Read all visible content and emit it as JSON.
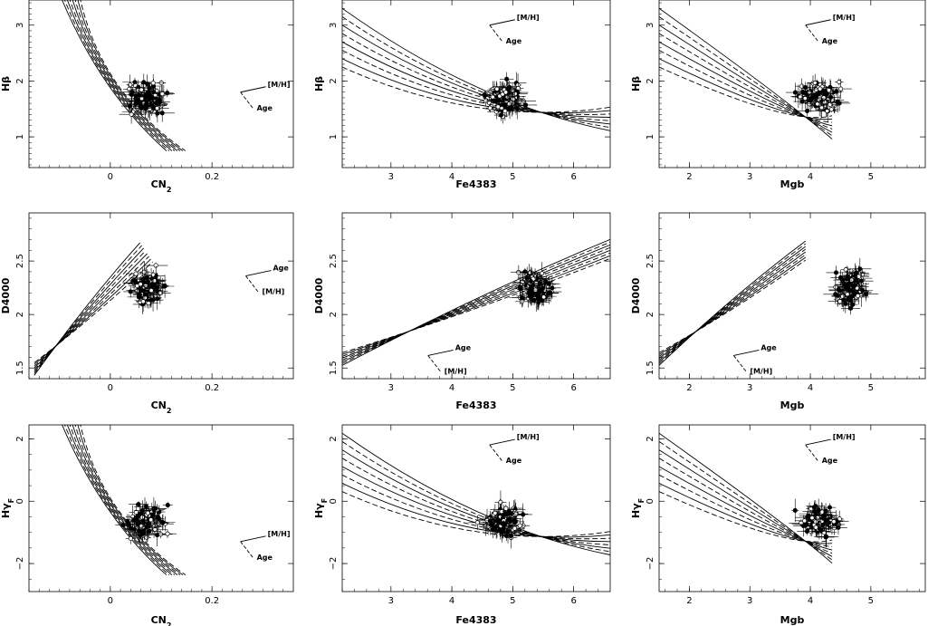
{
  "chart_data": [
    {
      "type": "scatter",
      "xlabel": "CN",
      "xlabel_sub": "2",
      "ylabel": "H",
      "ylabel_greek": "β",
      "xlim": [
        -0.16,
        0.36
      ],
      "ylim": [
        0.45,
        3.45
      ],
      "xticks": [
        "0",
        "0.2"
      ],
      "xtick_values": [
        0,
        0.2
      ],
      "yticks": [
        "1",
        "2",
        "3"
      ],
      "ytick_values": [
        1,
        2,
        3
      ],
      "annotations": [
        "[M/H]",
        "Age"
      ]
    },
    {
      "type": "scatter",
      "xlabel": "Fe4383",
      "ylabel": "H",
      "ylabel_greek": "β",
      "xlim": [
        2.2,
        6.6
      ],
      "ylim": [
        0.45,
        3.45
      ],
      "xticks": [
        "3",
        "4",
        "5",
        "6"
      ],
      "xtick_values": [
        3,
        4,
        5,
        6
      ],
      "yticks": [
        "1",
        "2",
        "3"
      ],
      "ytick_values": [
        1,
        2,
        3
      ],
      "annotations": [
        "[M/H]",
        "Age"
      ]
    },
    {
      "type": "scatter",
      "xlabel": "Mgb",
      "ylabel": "H",
      "ylabel_greek": "β",
      "xlim": [
        1.5,
        5.9
      ],
      "ylim": [
        0.45,
        3.45
      ],
      "xticks": [
        "2",
        "3",
        "4",
        "5"
      ],
      "xtick_values": [
        2,
        3,
        4,
        5
      ],
      "yticks": [
        "1",
        "2",
        "3"
      ],
      "ytick_values": [
        1,
        2,
        3
      ],
      "annotations": [
        "[M/H]",
        "Age"
      ]
    },
    {
      "type": "scatter",
      "xlabel": "CN",
      "xlabel_sub": "2",
      "ylabel": "D4000",
      "xlim": [
        -0.16,
        0.36
      ],
      "ylim": [
        1.4,
        2.95
      ],
      "xticks": [
        "0",
        "0.2"
      ],
      "xtick_values": [
        0,
        0.2
      ],
      "yticks": [
        "1.5",
        "2",
        "2.5"
      ],
      "ytick_values": [
        1.5,
        2,
        2.5
      ],
      "annotations": [
        "Age",
        "[M/H]"
      ]
    },
    {
      "type": "scatter",
      "xlabel": "Fe4383",
      "ylabel": "D4000",
      "xlim": [
        2.2,
        6.6
      ],
      "ylim": [
        1.4,
        2.95
      ],
      "xticks": [
        "3",
        "4",
        "5",
        "6"
      ],
      "xtick_values": [
        3,
        4,
        5,
        6
      ],
      "yticks": [
        "1.5",
        "2",
        "2.5"
      ],
      "ytick_values": [
        1.5,
        2,
        2.5
      ],
      "annotations": [
        "Age",
        "[M/H]"
      ]
    },
    {
      "type": "scatter",
      "xlabel": "Mgb",
      "ylabel": "D4000",
      "xlim": [
        1.5,
        5.9
      ],
      "ylim": [
        1.4,
        2.95
      ],
      "xticks": [
        "2",
        "3",
        "4",
        "5"
      ],
      "xtick_values": [
        2,
        3,
        4,
        5
      ],
      "yticks": [
        "1.5",
        "2",
        "2.5"
      ],
      "ytick_values": [
        1.5,
        2,
        2.5
      ],
      "annotations": [
        "Age",
        "[M/H]"
      ]
    },
    {
      "type": "scatter",
      "xlabel": "CN",
      "xlabel_sub": "2",
      "ylabel": "H",
      "ylabel_greek": "γ",
      "ylabel_sub": "F",
      "xlim": [
        -0.16,
        0.36
      ],
      "ylim": [
        -2.9,
        2.45
      ],
      "xticks": [
        "0",
        "0.2"
      ],
      "xtick_values": [
        0,
        0.2
      ],
      "yticks": [
        "−2",
        "0",
        "2"
      ],
      "ytick_values": [
        -2,
        0,
        2
      ],
      "annotations": [
        "[M/H]",
        "Age"
      ]
    },
    {
      "type": "scatter",
      "xlabel": "Fe4383",
      "ylabel": "H",
      "ylabel_greek": "γ",
      "ylabel_sub": "F",
      "xlim": [
        2.2,
        6.6
      ],
      "ylim": [
        -2.9,
        2.45
      ],
      "xticks": [
        "3",
        "4",
        "5",
        "6"
      ],
      "xtick_values": [
        3,
        4,
        5,
        6
      ],
      "yticks": [
        "−2",
        "0",
        "2"
      ],
      "ytick_values": [
        -2,
        0,
        2
      ],
      "annotations": [
        "[M/H]",
        "Age"
      ]
    },
    {
      "type": "scatter",
      "xlabel": "Mgb",
      "ylabel": "H",
      "ylabel_greek": "γ",
      "ylabel_sub": "F",
      "xlim": [
        1.5,
        5.9
      ],
      "ylim": [
        -2.9,
        2.45
      ],
      "xticks": [
        "2",
        "3",
        "4",
        "5"
      ],
      "xtick_values": [
        2,
        3,
        4,
        5
      ],
      "yticks": [
        "−2",
        "0",
        "2"
      ],
      "ytick_values": [
        -2,
        0,
        2
      ],
      "annotations": [
        "[M/H]",
        "Age"
      ]
    }
  ]
}
